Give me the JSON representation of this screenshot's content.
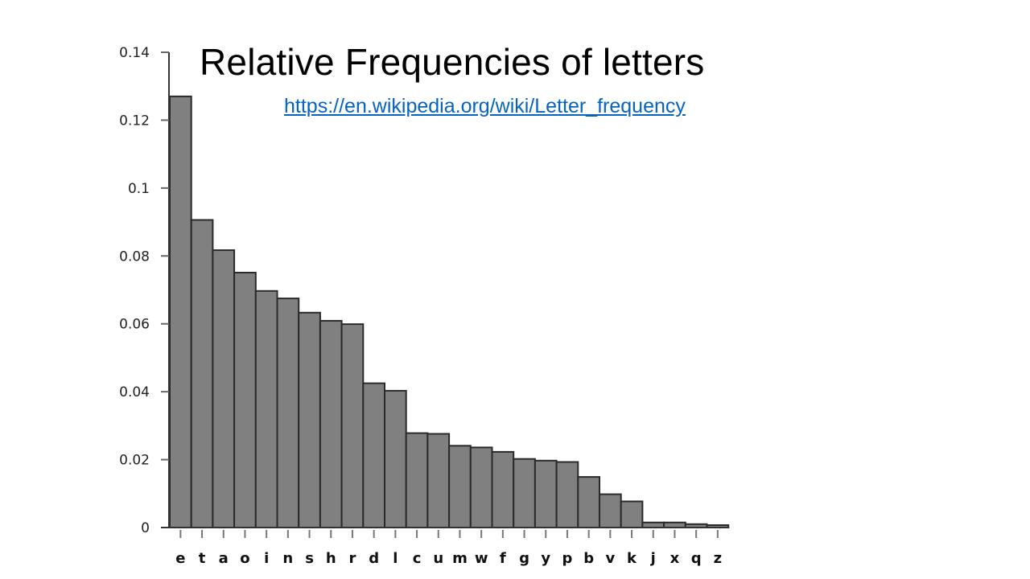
{
  "slide": {
    "title": "Relative Frequencies of letters",
    "link_text": "https://en.wikipedia.org/wiki/Letter_frequency"
  },
  "colors": {
    "bar_fill": "#808080",
    "bar_stroke": "#2a2a2a",
    "link": "#0563c1",
    "axis": "#333333"
  },
  "chart_data": {
    "type": "bar",
    "title": "Relative Frequencies of letters",
    "xlabel": "",
    "ylabel": "",
    "ylim": [
      0,
      0.14
    ],
    "yticks": [
      0,
      0.02,
      0.04,
      0.06,
      0.08,
      0.1,
      0.12,
      0.14
    ],
    "ytick_labels": [
      "0",
      "0.02",
      "0.04",
      "0.06",
      "0.08",
      "0.1",
      "0.12",
      "0.14"
    ],
    "grid": false,
    "legend": null,
    "categories": [
      "e",
      "t",
      "a",
      "o",
      "i",
      "n",
      "s",
      "h",
      "r",
      "d",
      "l",
      "c",
      "u",
      "m",
      "w",
      "f",
      "g",
      "y",
      "p",
      "b",
      "v",
      "k",
      "j",
      "x",
      "q",
      "z"
    ],
    "values": [
      0.127,
      0.0906,
      0.0817,
      0.0751,
      0.0697,
      0.0675,
      0.0633,
      0.0609,
      0.0599,
      0.0425,
      0.0403,
      0.0278,
      0.0276,
      0.0241,
      0.0236,
      0.0223,
      0.0202,
      0.0197,
      0.0193,
      0.0149,
      0.0098,
      0.0077,
      0.0015,
      0.0015,
      0.001,
      0.0007
    ]
  }
}
